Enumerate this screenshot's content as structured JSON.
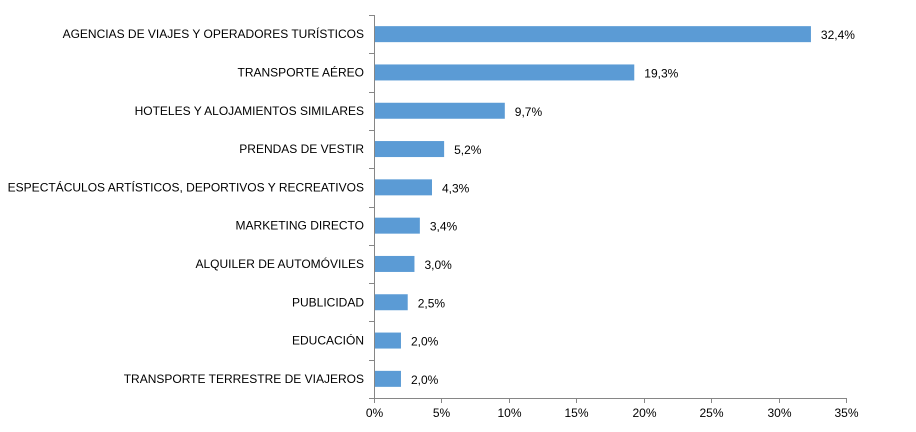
{
  "chart_data": {
    "type": "bar",
    "orientation": "horizontal",
    "title": "",
    "xlabel": "",
    "ylabel": "",
    "categories": [
      "AGENCIAS DE VIAJES Y OPERADORES TURÍSTICOS",
      "TRANSPORTE AÉREO",
      "HOTELES  Y ALOJAMIENTOS SIMILARES",
      "PRENDAS DE VESTIR",
      "ESPECTÁCULOS ARTÍSTICOS, DEPORTIVOS Y RECREATIVOS",
      "MARKETING DIRECTO",
      "ALQUILER DE AUTOMÓVILES",
      "PUBLICIDAD",
      "EDUCACIÓN",
      "TRANSPORTE TERRESTRE DE VIAJEROS"
    ],
    "values": [
      32.4,
      19.3,
      9.7,
      5.2,
      4.3,
      3.4,
      3.0,
      2.5,
      2.0,
      2.0
    ],
    "data_labels": [
      "32,4%",
      "19,3%",
      "9,7%",
      "5,2%",
      "4,3%",
      "3,4%",
      "3,0%",
      "2,5%",
      "2,0%",
      "2,0%"
    ],
    "xlim": [
      0,
      35
    ],
    "x_ticks": [
      0,
      5,
      10,
      15,
      20,
      25,
      30,
      35
    ],
    "x_tick_labels": [
      "0%",
      "5%",
      "10%",
      "15%",
      "20%",
      "25%",
      "30%",
      "35%"
    ],
    "grid": false,
    "legend": "none",
    "bar_color": "#5B9BD5",
    "axis_color": "#868686"
  }
}
